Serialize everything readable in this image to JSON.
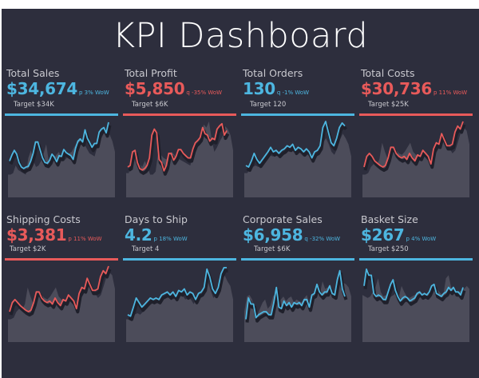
{
  "title": "KPI Dashboard",
  "colors": {
    "good": "#4db6e0",
    "bad": "#e85a5a",
    "area": "#4c4c5a",
    "shadow": "#1f202b",
    "background": "#2d2e3d"
  },
  "kpis": [
    {
      "name": "Total Sales",
      "value": "$34,674",
      "wow": "p 3% WoW",
      "target": "Target $34K",
      "status": "good",
      "line": [
        48,
        56,
        62,
        57,
        46,
        40,
        38,
        40,
        41,
        48,
        58,
        73,
        73,
        62,
        52,
        46,
        45,
        49,
        57,
        53,
        47,
        55,
        54,
        63,
        59,
        57,
        55,
        50,
        65,
        74,
        77,
        73,
        89,
        78,
        72,
        66,
        71,
        71,
        86,
        90,
        92,
        85,
        99
      ],
      "area": [
        30,
        30,
        32,
        42,
        36,
        34,
        32,
        30,
        52,
        62,
        48,
        40,
        42,
        48,
        58,
        70,
        48,
        46,
        50,
        56,
        60,
        50,
        48,
        52,
        58,
        60,
        66,
        72,
        78,
        75,
        70,
        64,
        58,
        56,
        54,
        66,
        74,
        80,
        88,
        86,
        82,
        74,
        60
      ]
    },
    {
      "name": "Total Profit",
      "value": "$5,850",
      "wow": "q -35% WoW",
      "target": "Target $6K",
      "status": "bad",
      "line": [
        40,
        42,
        60,
        62,
        46,
        38,
        36,
        38,
        42,
        52,
        82,
        90,
        85,
        50,
        46,
        35,
        42,
        58,
        58,
        49,
        54,
        63,
        63,
        58,
        55,
        52,
        52,
        64,
        72,
        75,
        79,
        92,
        84,
        82,
        74,
        78,
        76,
        90,
        94,
        97,
        82,
        88
      ],
      "area": [
        32,
        32,
        48,
        52,
        42,
        44,
        40,
        48,
        40,
        30,
        30,
        34,
        60,
        56,
        52,
        50,
        54,
        60,
        56,
        52,
        50,
        48,
        46,
        44,
        42,
        56,
        64,
        72,
        82,
        96,
        92,
        100,
        76,
        60,
        66,
        74,
        80,
        94,
        90,
        82,
        62
      ],
      "note": ""
    },
    {
      "name": "Total Orders",
      "value": "130",
      "wow": "q -1% WoW",
      "target": "Target 120",
      "status": "good",
      "line": [
        42,
        40,
        48,
        58,
        50,
        45,
        50,
        55,
        60,
        66,
        60,
        62,
        58,
        62,
        64,
        68,
        66,
        70,
        62,
        66,
        64,
        60,
        64,
        60,
        52,
        60,
        62,
        68,
        92,
        100,
        86,
        72,
        68,
        78,
        92,
        98,
        94
      ],
      "area": [
        32,
        32,
        36,
        40,
        42,
        40,
        42,
        48,
        52,
        56,
        54,
        56,
        54,
        58,
        60,
        62,
        60,
        62,
        58,
        60,
        58,
        54,
        58,
        56,
        50,
        56,
        58,
        64,
        72,
        78,
        70,
        60,
        56,
        64,
        76,
        84,
        78,
        70,
        54
      ]
    },
    {
      "name": "Total Costs",
      "value": "$30,736",
      "wow": "p 11% WoW",
      "target": "Target $25K",
      "status": "bad",
      "line": [
        40,
        54,
        58,
        54,
        48,
        45,
        42,
        40,
        42,
        52,
        66,
        66,
        58,
        54,
        52,
        54,
        50,
        58,
        52,
        48,
        56,
        54,
        62,
        58,
        54,
        44,
        64,
        72,
        70,
        84,
        76,
        68,
        68,
        70,
        86,
        94,
        90,
        100
      ],
      "area": [
        30,
        30,
        32,
        40,
        44,
        42,
        50,
        72,
        60,
        50,
        56,
        60,
        62,
        58,
        56,
        60,
        66,
        72,
        60,
        56,
        54,
        52,
        54,
        50,
        46,
        50,
        58,
        64,
        72,
        78,
        72,
        64,
        58,
        62,
        74,
        86,
        92,
        88,
        70
      ]
    },
    {
      "name": "Shipping Costs",
      "value": "$3,381",
      "wow": "p 11% WoW",
      "target": "Target $2K",
      "status": "bad",
      "line": [
        40,
        52,
        56,
        52,
        48,
        45,
        42,
        40,
        42,
        52,
        66,
        66,
        58,
        54,
        52,
        54,
        50,
        58,
        52,
        48,
        56,
        54,
        62,
        58,
        54,
        44,
        64,
        72,
        70,
        84,
        76,
        68,
        68,
        70,
        86,
        94,
        90,
        100
      ],
      "area": [
        30,
        30,
        32,
        40,
        44,
        42,
        50,
        72,
        60,
        50,
        56,
        60,
        62,
        58,
        56,
        60,
        66,
        72,
        60,
        56,
        54,
        52,
        54,
        50,
        46,
        50,
        58,
        64,
        72,
        78,
        72,
        64,
        58,
        62,
        74,
        86,
        92,
        88,
        70
      ]
    },
    {
      "name": "Days to Ship",
      "value": "4.2",
      "wow": "p 18% WoW",
      "target": "Target 4",
      "status": "good",
      "line": [
        36,
        34,
        46,
        58,
        52,
        46,
        50,
        54,
        58,
        56,
        58,
        56,
        62,
        64,
        66,
        62,
        66,
        60,
        68,
        66,
        70,
        62,
        66,
        64,
        56,
        64,
        66,
        72,
        96,
        86,
        70,
        64,
        72,
        90,
        98,
        98
      ],
      "area": [
        30,
        30,
        32,
        36,
        38,
        36,
        40,
        44,
        48,
        50,
        52,
        52,
        56,
        58,
        60,
        58,
        60,
        56,
        62,
        60,
        62,
        56,
        58,
        56,
        50,
        58,
        60,
        66,
        74,
        80,
        68,
        58,
        62,
        72,
        84,
        88,
        80,
        74,
        56
      ]
    },
    {
      "name": "Corporate Sales",
      "value": "$6,958",
      "wow": "q -32% WoW",
      "target": "Target $6K",
      "status": "good",
      "line": [
        30,
        58,
        50,
        50,
        32,
        36,
        38,
        40,
        40,
        36,
        36,
        52,
        72,
        46,
        44,
        54,
        48,
        52,
        46,
        52,
        50,
        52,
        48,
        56,
        56,
        46,
        62,
        64,
        76,
        66,
        62,
        66,
        66,
        74,
        64,
        62,
        82,
        94,
        70,
        60
      ],
      "area": [
        40,
        60,
        62,
        56,
        40,
        36,
        44,
        52,
        56,
        44,
        48,
        60,
        64,
        52,
        56,
        60,
        54,
        58,
        60,
        52,
        56,
        54,
        52,
        58,
        62,
        48,
        58,
        66,
        68,
        64,
        80,
        70,
        72,
        76,
        58,
        70,
        84,
        70,
        78,
        76,
        72,
        60
      ]
    },
    {
      "name": "Basket Size",
      "value": "$267",
      "wow": "p 4% WoW",
      "target": "Target $250",
      "status": "good",
      "line": [
        74,
        96,
        88,
        88,
        64,
        60,
        62,
        60,
        56,
        56,
        66,
        76,
        82,
        68,
        60,
        54,
        58,
        60,
        58,
        54,
        56,
        58,
        64,
        66,
        62,
        64,
        62,
        66,
        74,
        76,
        64,
        62,
        60,
        64,
        66,
        72,
        68,
        72,
        66,
        66,
        62,
        72
      ],
      "area": [
        62,
        60,
        58,
        60,
        66,
        72,
        84,
        66,
        60,
        62,
        56,
        60,
        62,
        66,
        60,
        74,
        66,
        60,
        58,
        60,
        62,
        64,
        66,
        62,
        60,
        64,
        62,
        64,
        72,
        68,
        64,
        62,
        84,
        88,
        72,
        66,
        62,
        66,
        68,
        70,
        74,
        70
      ]
    }
  ]
}
